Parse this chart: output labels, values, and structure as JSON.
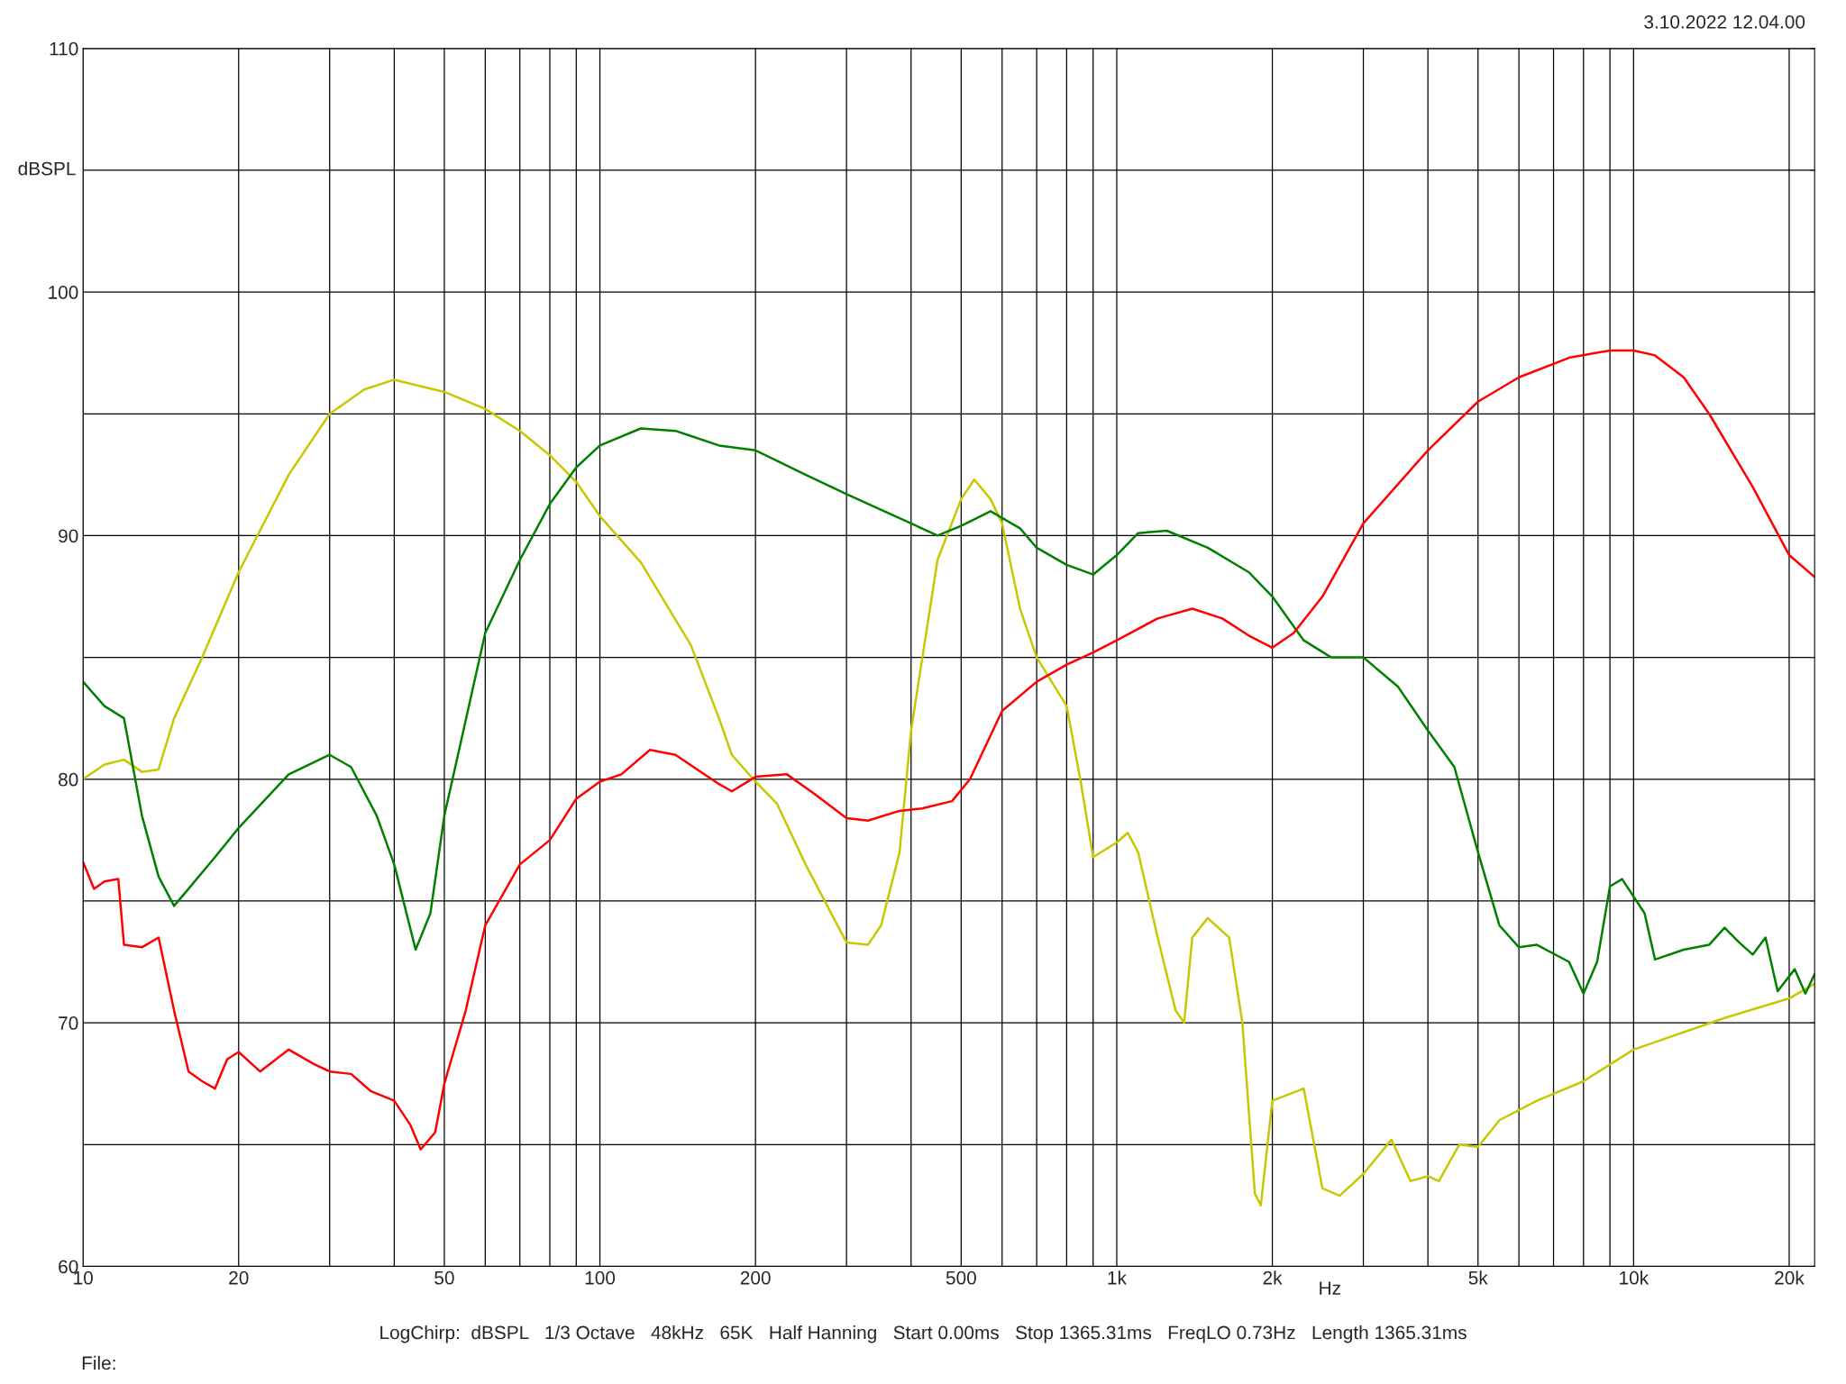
{
  "chart_data": {
    "type": "line",
    "xlabel": "Hz",
    "ylabel": "dBSPL",
    "log": "x",
    "grid": true,
    "xlim": [
      10,
      22400
    ],
    "ylim": [
      60,
      110
    ],
    "xticks": [
      10,
      20,
      {
        "value": 30,
        "label": null
      },
      {
        "value": 40,
        "label": null
      },
      50,
      {
        "value": 60,
        "label": null
      },
      {
        "value": 70,
        "label": null
      },
      {
        "value": 80,
        "label": null
      },
      {
        "value": 90,
        "label": null
      },
      100,
      200,
      {
        "value": 300,
        "label": null
      },
      {
        "value": 400,
        "label": null
      },
      500,
      {
        "value": 600,
        "label": null
      },
      {
        "value": 700,
        "label": null
      },
      {
        "value": 800,
        "label": null
      },
      {
        "value": 900,
        "label": null
      },
      {
        "value": 1000,
        "label": "1k"
      },
      {
        "value": 2000,
        "label": "2k"
      },
      {
        "value": 3000,
        "label": null
      },
      {
        "value": 4000,
        "label": null
      },
      {
        "value": 5000,
        "label": "5k"
      },
      {
        "value": 6000,
        "label": null
      },
      {
        "value": 7000,
        "label": null
      },
      {
        "value": 8000,
        "label": null
      },
      {
        "value": 9000,
        "label": null
      },
      {
        "value": 10000,
        "label": "10k"
      },
      {
        "value": 20000,
        "label": "20k"
      }
    ],
    "yticks": [
      60,
      {
        "value": 65,
        "label": null
      },
      70,
      {
        "value": 75,
        "label": null
      },
      80,
      {
        "value": 85,
        "label": null
      },
      90,
      {
        "value": 95,
        "label": null
      },
      100,
      {
        "value": 105,
        "label": null
      },
      110
    ],
    "annotations": [
      "3.10.2022 12.04.00",
      "LogChirp:  dBSPL   1/3 Octave   48kHz   65K   Half Hanning   Start 0.00ms   Stop 1365.31ms   FreqLO 0.73Hz   Length 1365.31ms",
      "File:"
    ],
    "series": [
      {
        "color": "#c8c800",
        "x": [
          10,
          11,
          12,
          13,
          14,
          15,
          17,
          20,
          25,
          30,
          35,
          40,
          50,
          60,
          70,
          80,
          90,
          100,
          120,
          150,
          170,
          180,
          200,
          220,
          250,
          280,
          300,
          330,
          350,
          380,
          400,
          450,
          500,
          530,
          570,
          600,
          650,
          700,
          800,
          850,
          900,
          1000,
          1050,
          1100,
          1200,
          1300,
          1350,
          1400,
          1500,
          1650,
          1750,
          1850,
          1900,
          2000,
          2300,
          2500,
          2700,
          3000,
          3400,
          3700,
          4000,
          4200,
          4600,
          5000,
          5500,
          6500,
          8000,
          10000,
          15000,
          20000,
          22400
        ],
        "values": [
          80,
          80.6,
          80.8,
          80.3,
          80.4,
          82.5,
          85,
          88.5,
          92.5,
          95,
          96,
          96.4,
          95.9,
          95.2,
          94.3,
          93.3,
          92.2,
          90.8,
          88.9,
          85.5,
          82.5,
          81,
          79.9,
          79,
          76.5,
          74.5,
          73.3,
          73.2,
          74,
          77,
          82,
          89,
          91.5,
          92.3,
          91.5,
          90.5,
          87,
          85,
          83,
          80,
          76.8,
          77.4,
          77.8,
          77,
          73.5,
          70.5,
          70,
          73.5,
          74.3,
          73.5,
          70,
          63,
          62.5,
          66.8,
          67.3,
          63.2,
          62.9,
          63.8,
          65.2,
          63.5,
          63.7,
          63.5,
          65,
          64.9,
          66,
          66.8,
          67.6,
          68.9,
          70.2,
          71,
          71.6
        ]
      },
      {
        "color": "#008000",
        "x": [
          10,
          11,
          12,
          13,
          14,
          15,
          16,
          18,
          20,
          25,
          30,
          33,
          37,
          40,
          44,
          47,
          50,
          60,
          70,
          80,
          90,
          100,
          120,
          140,
          170,
          200,
          250,
          300,
          400,
          450,
          500,
          570,
          650,
          700,
          800,
          900,
          1000,
          1100,
          1250,
          1500,
          1800,
          2000,
          2300,
          2600,
          3000,
          3500,
          4000,
          4500,
          5000,
          5500,
          6000,
          6500,
          7500,
          8000,
          8500,
          9000,
          9500,
          10500,
          11000,
          12500,
          14000,
          15000,
          16000,
          17000,
          18000,
          19000,
          20500,
          21500,
          22400
        ],
        "values": [
          84,
          83,
          82.5,
          78.5,
          76,
          74.8,
          75.5,
          76.8,
          78,
          80.2,
          81,
          80.5,
          78.5,
          76.5,
          73,
          74.5,
          78.5,
          86,
          89,
          91.3,
          92.8,
          93.7,
          94.4,
          94.3,
          93.7,
          93.5,
          92.5,
          91.7,
          90.5,
          90,
          90.4,
          91,
          90.3,
          89.5,
          88.8,
          88.4,
          89.2,
          90.1,
          90.2,
          89.5,
          88.5,
          87.5,
          85.7,
          85,
          85,
          83.8,
          82,
          80.5,
          77,
          74,
          73.1,
          73.2,
          72.5,
          71.2,
          72.5,
          75.6,
          75.9,
          74.5,
          72.6,
          73,
          73.2,
          73.9,
          73.3,
          72.8,
          73.5,
          71.3,
          72.2,
          71.2,
          72
        ]
      },
      {
        "color": "#ff0000",
        "x": [
          10,
          10.5,
          11,
          11.7,
          12,
          13,
          14,
          15,
          16,
          17,
          18,
          19,
          20,
          22,
          25,
          28,
          30,
          33,
          36,
          40,
          43,
          45,
          48,
          50,
          55,
          60,
          70,
          80,
          90,
          100,
          110,
          125,
          140,
          170,
          180,
          200,
          230,
          260,
          300,
          330,
          380,
          420,
          480,
          520,
          600,
          700,
          800,
          900,
          1000,
          1200,
          1400,
          1600,
          1800,
          2000,
          2200,
          2500,
          3000,
          4000,
          5000,
          6000,
          7500,
          9000,
          10000,
          11000,
          12500,
          14000,
          17000,
          20000,
          22400
        ],
        "values": [
          76.6,
          75.5,
          75.8,
          75.9,
          73.2,
          73.1,
          73.5,
          70.5,
          68,
          67.6,
          67.3,
          68.5,
          68.8,
          68,
          68.9,
          68.3,
          68,
          67.9,
          67.2,
          66.8,
          65.8,
          64.8,
          65.5,
          67.5,
          70.5,
          74,
          76.5,
          77.5,
          79.2,
          79.9,
          80.2,
          81.2,
          81,
          79.8,
          79.5,
          80.1,
          80.2,
          79.4,
          78.4,
          78.3,
          78.7,
          78.8,
          79.1,
          80,
          82.8,
          84,
          84.7,
          85.2,
          85.7,
          86.6,
          87,
          86.6,
          85.9,
          85.4,
          86,
          87.5,
          90.5,
          93.5,
          95.5,
          96.5,
          97.3,
          97.6,
          97.6,
          97.4,
          96.5,
          95,
          92,
          89.2,
          88.3
        ]
      }
    ]
  }
}
